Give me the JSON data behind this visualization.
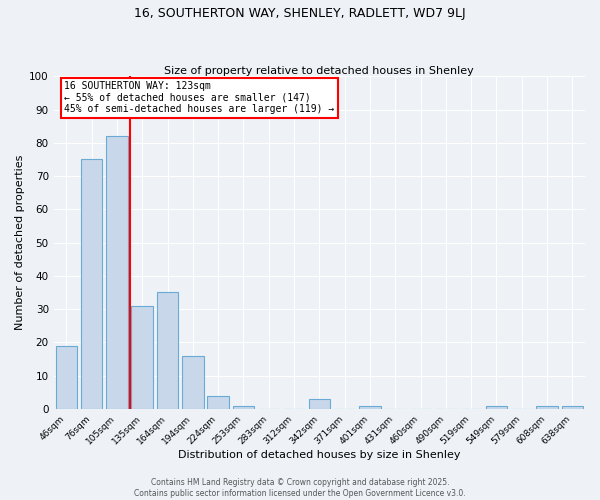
{
  "title1": "16, SOUTHERTON WAY, SHENLEY, RADLETT, WD7 9LJ",
  "title2": "Size of property relative to detached houses in Shenley",
  "xlabel": "Distribution of detached houses by size in Shenley",
  "ylabel": "Number of detached properties",
  "bar_labels": [
    "46sqm",
    "76sqm",
    "105sqm",
    "135sqm",
    "164sqm",
    "194sqm",
    "224sqm",
    "253sqm",
    "283sqm",
    "312sqm",
    "342sqm",
    "371sqm",
    "401sqm",
    "431sqm",
    "460sqm",
    "490sqm",
    "519sqm",
    "549sqm",
    "579sqm",
    "608sqm",
    "638sqm"
  ],
  "bar_values": [
    19,
    75,
    82,
    31,
    35,
    16,
    4,
    1,
    0,
    0,
    3,
    0,
    1,
    0,
    0,
    0,
    0,
    1,
    0,
    1,
    1
  ],
  "bar_color": "#c8d8ea",
  "bar_edge_color": "#6aaad4",
  "vline_color": "red",
  "vline_x": 2.5,
  "annotation_text": "16 SOUTHERTON WAY: 123sqm\n← 55% of detached houses are smaller (147)\n45% of semi-detached houses are larger (119) →",
  "annotation_box_color": "white",
  "annotation_box_edge_color": "red",
  "ylim": [
    0,
    100
  ],
  "yticks": [
    0,
    10,
    20,
    30,
    40,
    50,
    60,
    70,
    80,
    90,
    100
  ],
  "footer1": "Contains HM Land Registry data © Crown copyright and database right 2025.",
  "footer2": "Contains public sector information licensed under the Open Government Licence v3.0.",
  "bg_color": "#eef2f7",
  "plot_bg_color": "#eef2f7",
  "grid_color": "#ffffff",
  "title1_fontsize": 9,
  "title2_fontsize": 8,
  "xlabel_fontsize": 8,
  "ylabel_fontsize": 8,
  "xtick_fontsize": 6.5,
  "ytick_fontsize": 7.5,
  "annotation_fontsize": 7,
  "footer_fontsize": 5.5
}
